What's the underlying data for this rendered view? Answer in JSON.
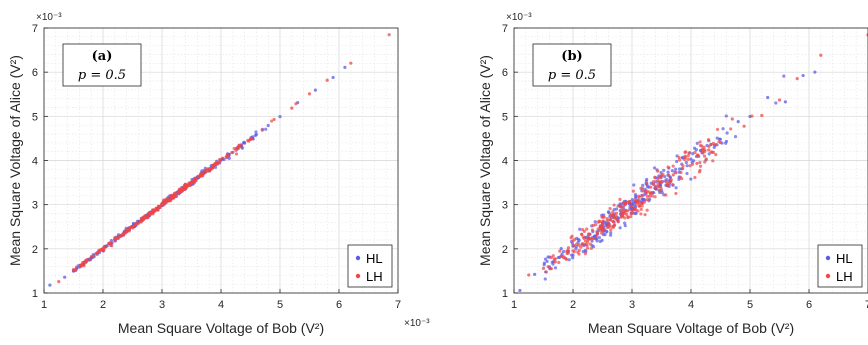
{
  "chart_data": [
    {
      "type": "scatter",
      "panel_label": "(a)",
      "annotation": "p = 0.5",
      "xlabel": "Mean Square Voltage of Bob (V²)",
      "ylabel": "Mean Square Voltage of Alice (V²)",
      "x_multiplier": "×10⁻³",
      "y_multiplier": "×10⁻³",
      "xlim": [
        1,
        7
      ],
      "ylim": [
        1,
        7
      ],
      "xticks": [
        "1",
        "2",
        "3",
        "4",
        "5",
        "6",
        "7"
      ],
      "yticks": [
        "1",
        "2",
        "3",
        "4",
        "5",
        "6",
        "7"
      ],
      "grid": true,
      "legend_position": "bottom-right",
      "spread": 0.04,
      "series": [
        {
          "name": "HL",
          "color": "#5a5ae6",
          "x": [
            1.1,
            1.35,
            1.6,
            1.8,
            2.0,
            2.2,
            2.4,
            2.6,
            2.8,
            3.0,
            3.2,
            3.4,
            3.6,
            3.8,
            4.0,
            4.2,
            4.4,
            4.6,
            4.8,
            5.0,
            5.3,
            5.6,
            5.9,
            6.1
          ]
        },
        {
          "name": "LH",
          "color": "#f04646",
          "x": [
            1.25,
            1.5,
            1.7,
            1.9,
            2.1,
            2.3,
            2.5,
            2.7,
            2.9,
            3.1,
            3.3,
            3.5,
            3.7,
            3.9,
            4.1,
            4.3,
            4.5,
            4.7,
            4.9,
            5.2,
            5.5,
            5.8,
            6.2,
            6.85
          ]
        }
      ]
    },
    {
      "type": "scatter",
      "panel_label": "(b)",
      "annotation": "p = 0.5",
      "xlabel": "Mean Square Voltage of Bob (V²)",
      "ylabel": "Mean Square Voltage of Alice (V²)",
      "x_multiplier": "×10⁻³",
      "y_multiplier": "×10⁻³",
      "xlim": [
        1,
        7
      ],
      "ylim": [
        1,
        7
      ],
      "xticks": [
        "1",
        "2",
        "3",
        "4",
        "5",
        "6",
        "7"
      ],
      "yticks": [
        "1",
        "2",
        "3",
        "4",
        "5",
        "6",
        "7"
      ],
      "grid": true,
      "legend_position": "bottom-right",
      "spread": 0.22,
      "series": [
        {
          "name": "HL",
          "color": "#5a5ae6",
          "x": [
            1.1,
            1.35,
            1.6,
            1.8,
            2.0,
            2.2,
            2.4,
            2.6,
            2.8,
            3.0,
            3.2,
            3.4,
            3.6,
            3.8,
            4.0,
            4.2,
            4.4,
            4.6,
            4.8,
            5.0,
            5.3,
            5.6,
            5.9,
            6.1
          ]
        },
        {
          "name": "LH",
          "color": "#f04646",
          "x": [
            1.25,
            1.5,
            1.7,
            1.9,
            2.1,
            2.3,
            2.5,
            2.7,
            2.9,
            3.1,
            3.3,
            3.5,
            3.7,
            3.9,
            4.1,
            4.3,
            4.5,
            4.7,
            4.9,
            5.2,
            5.5,
            5.8,
            6.2,
            7.0
          ]
        }
      ]
    }
  ]
}
